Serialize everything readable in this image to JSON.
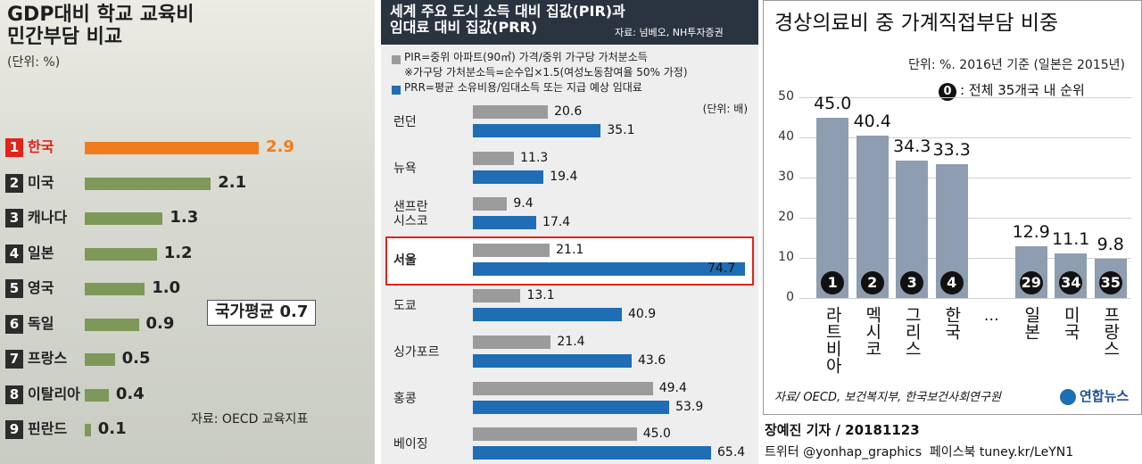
{
  "chart_data": [
    {
      "type": "hbar",
      "title": "GDP대비 학교 교육비\n민간부담 비교",
      "unit": "(단위: %)",
      "categories": [
        "한국",
        "미국",
        "캐나다",
        "일본",
        "영국",
        "독일",
        "프랑스",
        "이탈리아",
        "핀란드"
      ],
      "ranks": [
        1,
        2,
        3,
        4,
        5,
        6,
        7,
        8,
        9
      ],
      "values": [
        2.9,
        2.1,
        1.3,
        1.2,
        1.0,
        0.9,
        0.5,
        0.4,
        0.1
      ],
      "value_labels": [
        "2.9",
        "2.1",
        "1.3",
        "1.2",
        "1.0",
        "0.9",
        "0.5",
        "0.4",
        "0.1"
      ],
      "color": "#7d9858",
      "highlight_color": "#f07c1e",
      "highlight": 0,
      "annotation": "국가평균 0.7",
      "source": "자료: OECD 교육지표"
    },
    {
      "type": "grouped-hbar",
      "title": "세계 주요 도시 소득 대비 집값(PIR)과\n임대료 대비 집값(PRR)",
      "source": "자료: 넘베오, NH투자증권",
      "note": "※가구당 가처분소득=순수입×1.5(여성노동참여율 50% 가정)",
      "unit": "(단위: 배)",
      "categories": [
        "런던",
        "뉴욕",
        "샌프란\n시스코",
        "서울",
        "도쿄",
        "싱가포르",
        "홍콩",
        "베이징"
      ],
      "highlight": 3,
      "series": [
        {
          "name": "PIR=중위 아파트(90㎡) 가격/중위 가구당 가처분소득",
          "color": "#9b9b9b",
          "values": [
            20.6,
            11.3,
            9.4,
            21.1,
            13.1,
            21.4,
            49.4,
            45.0
          ],
          "value_labels": [
            "20.6",
            "11.3",
            "9.4",
            "21.1",
            "13.1",
            "21.4",
            "49.4",
            "45.0"
          ]
        },
        {
          "name": "PRR=평균 소유비용/임대소득 또는 지급 예상 임대료",
          "color": "#1f6db4",
          "values": [
            35.1,
            19.4,
            17.4,
            74.7,
            40.9,
            43.6,
            53.9,
            65.4
          ]
        }
      ]
    },
    {
      "type": "bar",
      "title": "경상의료비 중 가계직접부담 비중",
      "subtitle": "단위: %. 2016년 기준 (일본은 2015년)",
      "legend_symbol": "0",
      "legend_note": ": 전체 35개국 내 순위",
      "categories": [
        "라트비아",
        "멕시코",
        "그리스",
        "한국",
        "…",
        "일본",
        "미국",
        "프랑스"
      ],
      "values": [
        45.0,
        40.4,
        34.3,
        33.3,
        null,
        12.9,
        11.1,
        9.8
      ],
      "value_labels": [
        "45.0",
        "40.4",
        "34.3",
        "33.3",
        null,
        "12.9",
        "11.1",
        "9.8"
      ],
      "ranks": [
        1,
        2,
        3,
        4,
        null,
        29,
        34,
        35
      ],
      "color": "#8e9db0",
      "ylim": [
        0,
        50
      ],
      "yticks": [
        0,
        10,
        20,
        30,
        40,
        50
      ],
      "grid": true,
      "source": "자료/ OECD, 보건복지부, 한국보건사회연구원",
      "logo": "연합뉴스"
    }
  ],
  "footer": {
    "byline": "장예진 기자 / 20181123",
    "sns": "트위터 @yonhap_graphics  페이스북 tuney.kr/LeYN1"
  }
}
